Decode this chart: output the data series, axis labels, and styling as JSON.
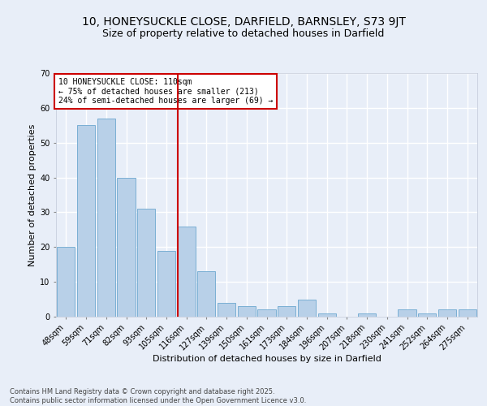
{
  "title1": "10, HONEYSUCKLE CLOSE, DARFIELD, BARNSLEY, S73 9JT",
  "title2": "Size of property relative to detached houses in Darfield",
  "xlabel": "Distribution of detached houses by size in Darfield",
  "ylabel": "Number of detached properties",
  "categories": [
    "48sqm",
    "59sqm",
    "71sqm",
    "82sqm",
    "93sqm",
    "105sqm",
    "116sqm",
    "127sqm",
    "139sqm",
    "150sqm",
    "161sqm",
    "173sqm",
    "184sqm",
    "196sqm",
    "207sqm",
    "218sqm",
    "230sqm",
    "241sqm",
    "252sqm",
    "264sqm",
    "275sqm"
  ],
  "values": [
    20,
    55,
    57,
    40,
    31,
    19,
    26,
    13,
    4,
    3,
    2,
    3,
    5,
    1,
    0,
    1,
    0,
    2,
    1,
    2,
    2
  ],
  "bar_color": "#b8d0e8",
  "bar_edge_color": "#7aafd4",
  "highlight_index": 6,
  "highlight_line_color": "#cc0000",
  "annotation_text": "10 HONEYSUCKLE CLOSE: 110sqm\n← 75% of detached houses are smaller (213)\n24% of semi-detached houses are larger (69) →",
  "annotation_box_color": "#ffffff",
  "annotation_box_edge": "#cc0000",
  "ylim": [
    0,
    70
  ],
  "yticks": [
    0,
    10,
    20,
    30,
    40,
    50,
    60,
    70
  ],
  "footer": "Contains HM Land Registry data © Crown copyright and database right 2025.\nContains public sector information licensed under the Open Government Licence v3.0.",
  "bg_color": "#e8eef8",
  "grid_color": "#ffffff",
  "title_fontsize": 10,
  "subtitle_fontsize": 9,
  "axis_label_fontsize": 8,
  "tick_fontsize": 7,
  "annotation_fontsize": 7,
  "footer_fontsize": 6
}
